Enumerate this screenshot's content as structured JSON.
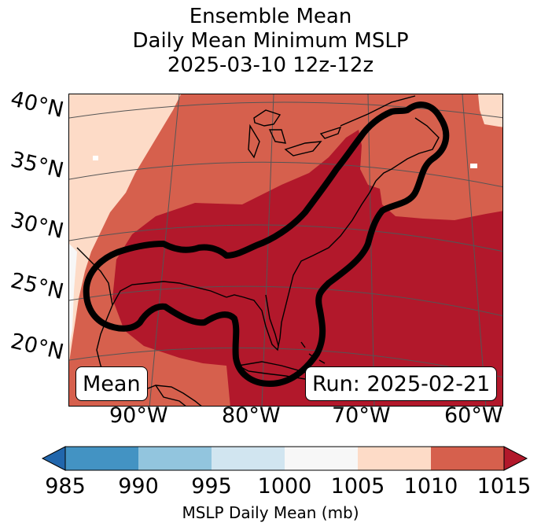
{
  "title": {
    "line1": "Ensemble Mean",
    "line2": "Daily Mean Minimum MSLP",
    "line3": "2025-03-10 12z-12z"
  },
  "map": {
    "lat_labels": [
      "40°N",
      "35°N",
      "30°N",
      "25°N",
      "20°N"
    ],
    "lon_labels": [
      "90°W",
      "80°W",
      "70°W",
      "60°W"
    ],
    "annotation_left": "Mean",
    "annotation_right": "Run: 2025-02-21",
    "colors": {
      "land_line": "#000000",
      "contour": "#000000",
      "grid": "#555555"
    }
  },
  "colorbar": {
    "label": "MSLP Daily Mean (mb)",
    "ticks": [
      "985",
      "990",
      "995",
      "1000",
      "1005",
      "1010",
      "1015"
    ],
    "bins": [
      {
        "range": "985-990",
        "color": "#4393c3"
      },
      {
        "range": "990-995",
        "color": "#92c5de"
      },
      {
        "range": "995-1000",
        "color": "#d1e5f0"
      },
      {
        "range": "1000-1005",
        "color": "#f7f7f7"
      },
      {
        "range": "1005-1010",
        "color": "#fddbc7"
      },
      {
        "range": "1010-1015",
        "color": "#d6604d"
      }
    ],
    "under_color": "#2166ac",
    "over_color": "#b2182b"
  }
}
